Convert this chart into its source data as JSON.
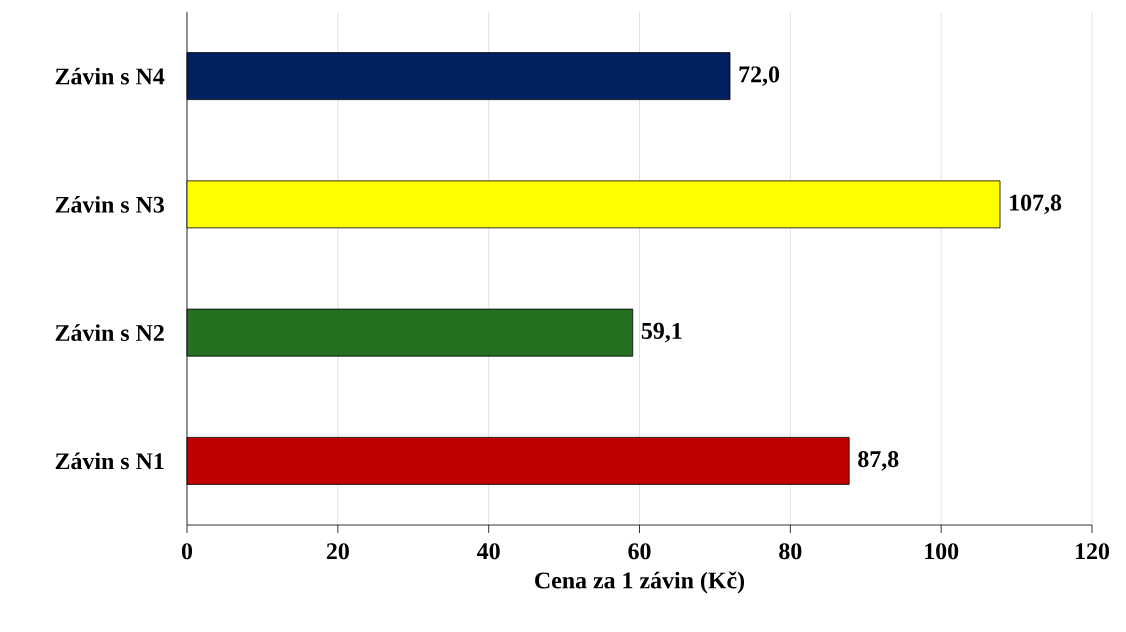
{
  "chart_data": {
    "type": "bar",
    "orientation": "horizontal",
    "categories": [
      "Závin s N4",
      "Závin s N3",
      "Závin s N2",
      "Závin s N1"
    ],
    "values": [
      72.0,
      107.8,
      59.1,
      87.8
    ],
    "colors": [
      "#002060",
      "#ffff00",
      "#267022",
      "#c00000"
    ],
    "value_labels": [
      "72,0",
      "107,8",
      "59,1",
      "87,8"
    ],
    "xlim": [
      0,
      120
    ],
    "xticks": [
      0,
      20,
      40,
      60,
      80,
      100,
      120
    ],
    "xlabel": "Cena za 1 závin (Kč)",
    "grid": "x"
  }
}
